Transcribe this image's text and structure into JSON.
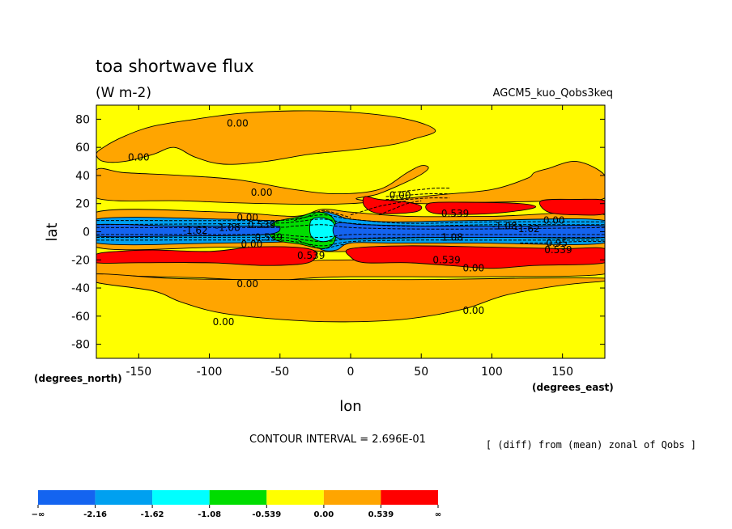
{
  "chart_data": {
    "type": "contour",
    "title": "toa shortwave flux",
    "units": "(W m-2)",
    "experiment": "AGCM5_kuo_Qobs3keq",
    "xlabel": "lon",
    "ylabel": "lat",
    "x_units": "(degrees_east)",
    "y_units": "(degrees_north)",
    "xlim": [
      -180,
      180
    ],
    "ylim": [
      -90,
      90
    ],
    "xticks": [
      -150,
      -100,
      -50,
      0,
      50,
      100,
      150
    ],
    "yticks": [
      80,
      60,
      40,
      20,
      0,
      -20,
      -40,
      -60,
      -80
    ],
    "contour_interval_text": "CONTOUR INTERVAL = 2.696E-01",
    "note": "[ (diff) from (mean) zonal of Qobs ]",
    "colorbar": {
      "labels": [
        "−∞",
        "-2.16",
        "-1.62",
        "-1.08",
        "-0.539",
        "0.00",
        "0.539",
        "∞"
      ],
      "colors": [
        "#1464f0",
        "#00a0f0",
        "#00ffff",
        "#00dd00",
        "#ffff00",
        "#ffa500",
        "#ff0000"
      ]
    },
    "colors": {
      "blue": "#1464f0",
      "lightblue": "#00a0f0",
      "cyan": "#00ffff",
      "green": "#00dd00",
      "yellow": "#ffff00",
      "orange": "#ffa500",
      "red": "#ff0000"
    },
    "regions": [
      {
        "level": "orange",
        "pts": [
          [
            -180,
            55
          ],
          [
            -175,
            60
          ],
          [
            -160,
            68
          ],
          [
            -140,
            75
          ],
          [
            -110,
            80
          ],
          [
            -80,
            84
          ],
          [
            -40,
            86
          ],
          [
            0,
            85
          ],
          [
            40,
            80
          ],
          [
            60,
            72
          ],
          [
            45,
            66
          ],
          [
            30,
            62
          ],
          [
            0,
            58
          ],
          [
            -30,
            55
          ],
          [
            -60,
            50
          ],
          [
            -90,
            48
          ],
          [
            -110,
            53
          ],
          [
            -125,
            60
          ],
          [
            -140,
            55
          ],
          [
            -160,
            50
          ],
          [
            -175,
            50
          ]
        ]
      },
      {
        "level": "orange",
        "pts": [
          [
            -180,
            44
          ],
          [
            -160,
            42
          ],
          [
            -120,
            40
          ],
          [
            -80,
            37
          ],
          [
            -40,
            30
          ],
          [
            -10,
            27
          ],
          [
            20,
            30
          ],
          [
            40,
            42
          ],
          [
            50,
            47
          ],
          [
            55,
            45
          ],
          [
            45,
            38
          ],
          [
            20,
            27
          ],
          [
            5,
            23
          ],
          [
            50,
            20
          ],
          [
            100,
            21
          ],
          [
            150,
            22
          ],
          [
            180,
            24
          ],
          [
            180,
            40
          ],
          [
            160,
            50
          ],
          [
            140,
            45
          ],
          [
            130,
            42
          ],
          [
            125,
            38
          ],
          [
            100,
            30
          ],
          [
            60,
            26
          ],
          [
            0,
            20
          ],
          [
            -60,
            20
          ],
          [
            -120,
            22
          ],
          [
            -180,
            24
          ]
        ]
      },
      {
        "level": "orange",
        "pts": [
          [
            -180,
            14
          ],
          [
            -90,
            14
          ],
          [
            -40,
            11
          ],
          [
            -20,
            16
          ],
          [
            0,
            14
          ],
          [
            40,
            11
          ],
          [
            100,
            11
          ],
          [
            180,
            12
          ],
          [
            180,
            -13
          ],
          [
            100,
            -13
          ],
          [
            40,
            -13
          ],
          [
            0,
            -14
          ],
          [
            -20,
            -14
          ],
          [
            -40,
            -12
          ],
          [
            -90,
            -11
          ],
          [
            -180,
            -11
          ]
        ]
      },
      {
        "level": "orange",
        "pts": [
          [
            -180,
            -30
          ],
          [
            -100,
            -33
          ],
          [
            -60,
            -35
          ],
          [
            -30,
            -33
          ],
          [
            0,
            -32
          ],
          [
            40,
            -32
          ],
          [
            100,
            -32
          ],
          [
            180,
            -30
          ],
          [
            180,
            -18
          ],
          [
            100,
            -22
          ],
          [
            0,
            -20
          ],
          [
            -90,
            -22
          ],
          [
            -180,
            -22
          ]
        ]
      },
      {
        "level": "orange",
        "pts": [
          [
            -180,
            -36
          ],
          [
            -140,
            -42
          ],
          [
            -120,
            -50
          ],
          [
            -90,
            -58
          ],
          [
            -40,
            -63
          ],
          [
            0,
            -64
          ],
          [
            40,
            -62
          ],
          [
            80,
            -55
          ],
          [
            110,
            -45
          ],
          [
            150,
            -38
          ],
          [
            180,
            -35
          ],
          [
            180,
            -33
          ],
          [
            120,
            -33
          ],
          [
            60,
            -34
          ],
          [
            0,
            -34
          ],
          [
            -80,
            -34
          ],
          [
            -130,
            -33
          ],
          [
            -180,
            -30
          ]
        ]
      },
      {
        "level": "red",
        "pts": [
          [
            10,
            25
          ],
          [
            20,
            23
          ],
          [
            40,
            21
          ],
          [
            50,
            18
          ],
          [
            45,
            14
          ],
          [
            20,
            13
          ],
          [
            10,
            18
          ]
        ]
      },
      {
        "level": "red",
        "pts": [
          [
            55,
            20
          ],
          [
            80,
            21
          ],
          [
            120,
            20
          ],
          [
            130,
            17
          ],
          [
            100,
            13
          ],
          [
            60,
            13
          ]
        ]
      },
      {
        "level": "red",
        "pts": [
          [
            135,
            22
          ],
          [
            160,
            23
          ],
          [
            180,
            22
          ],
          [
            180,
            13
          ],
          [
            160,
            12
          ],
          [
            140,
            14
          ]
        ]
      },
      {
        "level": "red",
        "pts": [
          [
            -180,
            -16
          ],
          [
            -165,
            -14
          ],
          [
            -140,
            -13
          ],
          [
            -100,
            -14
          ],
          [
            -70,
            -11
          ],
          [
            -40,
            -11
          ],
          [
            -25,
            -14
          ],
          [
            -30,
            -22
          ],
          [
            -60,
            -24
          ],
          [
            -100,
            -22
          ],
          [
            -150,
            -22
          ],
          [
            -180,
            -22
          ]
        ]
      },
      {
        "level": "red",
        "pts": [
          [
            0,
            -12
          ],
          [
            40,
            -10
          ],
          [
            100,
            -11
          ],
          [
            150,
            -12
          ],
          [
            180,
            -12
          ],
          [
            180,
            -22
          ],
          [
            130,
            -24
          ],
          [
            100,
            -26
          ],
          [
            70,
            -24
          ],
          [
            40,
            -22
          ],
          [
            10,
            -22
          ],
          [
            0,
            -18
          ]
        ]
      },
      {
        "level": "lightblue",
        "pts": [
          [
            -180,
            9
          ],
          [
            -90,
            9
          ],
          [
            -40,
            7
          ],
          [
            -30,
            6
          ],
          [
            -20,
            14
          ],
          [
            -10,
            12
          ],
          [
            0,
            9
          ],
          [
            30,
            7
          ],
          [
            90,
            8
          ],
          [
            180,
            8
          ],
          [
            180,
            -8
          ],
          [
            90,
            -8
          ],
          [
            30,
            -8
          ],
          [
            0,
            -8
          ],
          [
            -10,
            -13
          ],
          [
            -20,
            -13
          ],
          [
            -30,
            -6
          ],
          [
            -40,
            -7
          ],
          [
            -90,
            -8
          ],
          [
            -180,
            -8
          ]
        ]
      },
      {
        "level": "green",
        "pts": [
          [
            -55,
            6
          ],
          [
            -35,
            11
          ],
          [
            -25,
            14
          ],
          [
            -15,
            12
          ],
          [
            -10,
            4
          ],
          [
            -12,
            -8
          ],
          [
            -20,
            -12
          ],
          [
            -35,
            -9
          ],
          [
            -55,
            -5
          ]
        ]
      },
      {
        "level": "cyan",
        "pts": [
          [
            -28,
            8
          ],
          [
            -20,
            10
          ],
          [
            -12,
            6
          ],
          [
            -12,
            -4
          ],
          [
            -20,
            -7
          ],
          [
            -28,
            -3
          ]
        ]
      },
      {
        "level": "blue",
        "pts": [
          [
            -180,
            5
          ],
          [
            -120,
            4
          ],
          [
            -60,
            4
          ],
          [
            -50,
            3
          ],
          [
            -60,
            -2
          ],
          [
            -120,
            -3
          ],
          [
            -180,
            -3
          ]
        ]
      },
      {
        "level": "blue",
        "pts": [
          [
            -10,
            6
          ],
          [
            10,
            5
          ],
          [
            60,
            4
          ],
          [
            120,
            4
          ],
          [
            180,
            4
          ],
          [
            180,
            -4
          ],
          [
            120,
            -4
          ],
          [
            60,
            -4
          ],
          [
            10,
            -5
          ],
          [
            -10,
            -4
          ]
        ]
      }
    ],
    "dashed": [
      [
        [
          -180,
          8
        ],
        [
          -60,
          8
        ],
        [
          -40,
          9
        ],
        [
          -20,
          12
        ],
        [
          0,
          9
        ],
        [
          40,
          6
        ],
        [
          100,
          7
        ],
        [
          180,
          7
        ]
      ],
      [
        [
          -180,
          5
        ],
        [
          -60,
          6
        ],
        [
          -40,
          7
        ],
        [
          -20,
          9
        ],
        [
          0,
          6
        ],
        [
          40,
          4
        ],
        [
          100,
          5
        ],
        [
          180,
          5
        ]
      ],
      [
        [
          -180,
          3
        ],
        [
          -60,
          3
        ],
        [
          -40,
          4
        ],
        [
          -20,
          5
        ],
        [
          0,
          3
        ],
        [
          40,
          2
        ],
        [
          100,
          2
        ],
        [
          180,
          3
        ]
      ],
      [
        [
          -180,
          -2
        ],
        [
          -60,
          -2
        ],
        [
          -40,
          -3
        ],
        [
          -20,
          -4
        ],
        [
          0,
          -2
        ],
        [
          40,
          -2
        ],
        [
          100,
          -2
        ],
        [
          180,
          -2
        ]
      ],
      [
        [
          -180,
          -4
        ],
        [
          -60,
          -4
        ],
        [
          -40,
          -5
        ],
        [
          -20,
          -7
        ],
        [
          0,
          -5
        ],
        [
          40,
          -4
        ],
        [
          100,
          -4
        ],
        [
          180,
          -4
        ]
      ],
      [
        [
          -180,
          -6
        ],
        [
          -60,
          -6
        ],
        [
          -40,
          -7
        ],
        [
          -20,
          -10
        ],
        [
          0,
          -7
        ],
        [
          40,
          -6
        ],
        [
          100,
          -6
        ],
        [
          180,
          -6
        ]
      ],
      [
        [
          -40,
          8
        ],
        [
          -30,
          11
        ],
        [
          -20,
          15
        ],
        [
          -10,
          13
        ],
        [
          0,
          10
        ]
      ],
      [
        [
          -40,
          -5
        ],
        [
          -30,
          -9
        ],
        [
          -20,
          -12
        ],
        [
          -10,
          -10
        ],
        [
          0,
          -8
        ]
      ],
      [
        [
          30,
          28
        ],
        [
          40,
          29
        ],
        [
          50,
          30
        ],
        [
          60,
          31
        ],
        [
          70,
          31
        ]
      ],
      [
        [
          25,
          25
        ],
        [
          40,
          26
        ],
        [
          55,
          27
        ],
        [
          70,
          27
        ]
      ],
      [
        [
          25,
          23
        ],
        [
          40,
          23
        ],
        [
          55,
          24
        ],
        [
          70,
          24
        ]
      ],
      [
        [
          20,
          12
        ],
        [
          30,
          16
        ],
        [
          40,
          20
        ],
        [
          50,
          22
        ]
      ],
      [
        [
          0,
          12
        ],
        [
          10,
          15
        ],
        [
          20,
          18
        ],
        [
          30,
          20
        ],
        [
          40,
          22
        ]
      ],
      [
        [
          120,
          -8
        ],
        [
          140,
          -8
        ],
        [
          160,
          -7
        ],
        [
          180,
          -7
        ]
      ]
    ],
    "contour_labels": [
      {
        "text": "0.00",
        "lon": -80,
        "lat": 77
      },
      {
        "text": "0.00",
        "lon": -150,
        "lat": 53
      },
      {
        "text": "0.00",
        "lon": -63,
        "lat": 28
      },
      {
        "text": "0.00",
        "lon": 35,
        "lat": 26
      },
      {
        "text": "0.00",
        "lon": -73,
        "lat": 10
      },
      {
        "text": "0.539",
        "lon": -63,
        "lat": 5
      },
      {
        "text": "-1.62",
        "lon": -110,
        "lat": 1
      },
      {
        "text": "-1.08",
        "lon": -87,
        "lat": 3
      },
      {
        "text": "0.539",
        "lon": -58,
        "lat": -4
      },
      {
        "text": "0.00",
        "lon": -70,
        "lat": -9
      },
      {
        "text": "0.539",
        "lon": -28,
        "lat": -17
      },
      {
        "text": "0.539",
        "lon": 74,
        "lat": 13
      },
      {
        "text": "-1.08",
        "lon": 109,
        "lat": 4
      },
      {
        "text": "-1.62",
        "lon": 125,
        "lat": 2
      },
      {
        "text": "0.00",
        "lon": 144,
        "lat": 8
      },
      {
        "text": "1.08",
        "lon": 72,
        "lat": -4
      },
      {
        "text": "0.95",
        "lon": 146,
        "lat": -8
      },
      {
        "text": "0.539",
        "lon": 147,
        "lat": -13
      },
      {
        "text": "0.539",
        "lon": 68,
        "lat": -20
      },
      {
        "text": "0.00",
        "lon": 87,
        "lat": -26
      },
      {
        "text": "0.00",
        "lon": -73,
        "lat": -37
      },
      {
        "text": "0.00",
        "lon": 87,
        "lat": -56
      },
      {
        "text": "0.00",
        "lon": -90,
        "lat": -64
      }
    ]
  }
}
